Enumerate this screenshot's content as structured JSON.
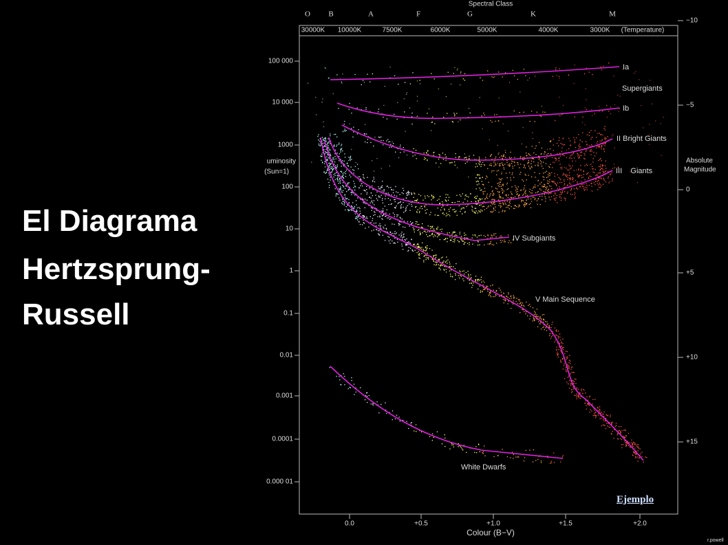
{
  "slide": {
    "title": [
      "El Diagrama",
      "Hertzsprung-",
      "Russell"
    ],
    "diagram": {
      "spectral_title": "Spectral Class",
      "spectral_classes": [
        "O",
        "B",
        "A",
        "F",
        "G",
        "K",
        "M"
      ],
      "temperatures": [
        "30000K",
        "10000K",
        "7500K",
        "6000K",
        "5000K",
        "4000K",
        "3000K",
        "(Temperature)"
      ],
      "luminosity_label": [
        "uminosity",
        "(Sun=1)"
      ],
      "luminosity_ticks": [
        "100 000",
        "10 000",
        "1000",
        "100",
        "10",
        "1",
        "0.1",
        "0.01",
        "0.001",
        "0.0001",
        "0.000 01"
      ],
      "magnitude_label": [
        "Absolute",
        "Magnitude"
      ],
      "magnitude_ticks": [
        "−10",
        "−5",
        "0",
        "+5",
        "+10",
        "+15"
      ],
      "colour_label": "Colour (B−V)",
      "colour_ticks": [
        "0.0",
        "+0.5",
        "+1.0",
        "+1.5",
        "+2.0"
      ],
      "branches": [
        "Ia",
        "Supergiants",
        "Ib",
        "II Bright Giants",
        "III    Giants",
        "IV Subgiants",
        "V Main Sequence",
        "White Dwarfs"
      ]
    },
    "link": "Ejemplo",
    "credit": "r.powell"
  }
}
